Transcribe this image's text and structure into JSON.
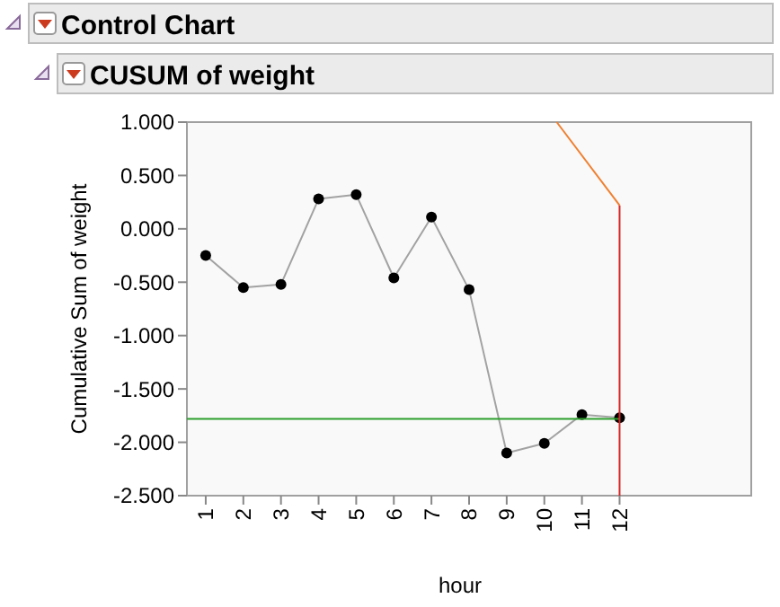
{
  "chart_data": {
    "type": "line",
    "title": "Control Chart",
    "subtitle": "CUSUM of weight",
    "xlabel": "hour",
    "ylabel": "Cumulative Sum of weight",
    "x": [
      1,
      2,
      3,
      4,
      5,
      6,
      7,
      8,
      9,
      10,
      11,
      12
    ],
    "xlim": [
      0.5,
      15.5
    ],
    "xticks": [
      1,
      2,
      3,
      4,
      5,
      6,
      7,
      8,
      9,
      10,
      11,
      12
    ],
    "ylim": [
      -2.5,
      1.0
    ],
    "yticks": [
      {
        "value": 1,
        "label": "1.000"
      },
      {
        "value": 0.5,
        "label": "0.500"
      },
      {
        "value": 0,
        "label": "0.000"
      },
      {
        "value": -0.5,
        "label": "-0.500"
      },
      {
        "value": -1,
        "label": "-1.000"
      },
      {
        "value": -1.5,
        "label": "-1.500"
      },
      {
        "value": -2,
        "label": "-2.000"
      },
      {
        "value": -2.5,
        "label": "-2.500"
      }
    ],
    "grid": false,
    "series": [
      {
        "color": "#000000",
        "marker": "circle",
        "values": [
          -0.25,
          -0.55,
          -0.52,
          0.28,
          0.32,
          -0.46,
          0.11,
          -0.57,
          -2.1,
          -2.01,
          -1.74,
          -1.77
        ]
      },
      {
        "color": "#2ca02c",
        "marker": "none",
        "x": [
          0.5,
          12
        ],
        "values": [
          -1.78,
          -1.78
        ]
      },
      {
        "color": "#f08030",
        "marker": "none",
        "x": [
          10.33,
          12
        ],
        "values": [
          1.0,
          0.22
        ]
      },
      {
        "color": "#d62728",
        "marker": "none",
        "x": [
          12,
          12
        ],
        "values": [
          0.22,
          -2.5
        ]
      }
    ]
  }
}
